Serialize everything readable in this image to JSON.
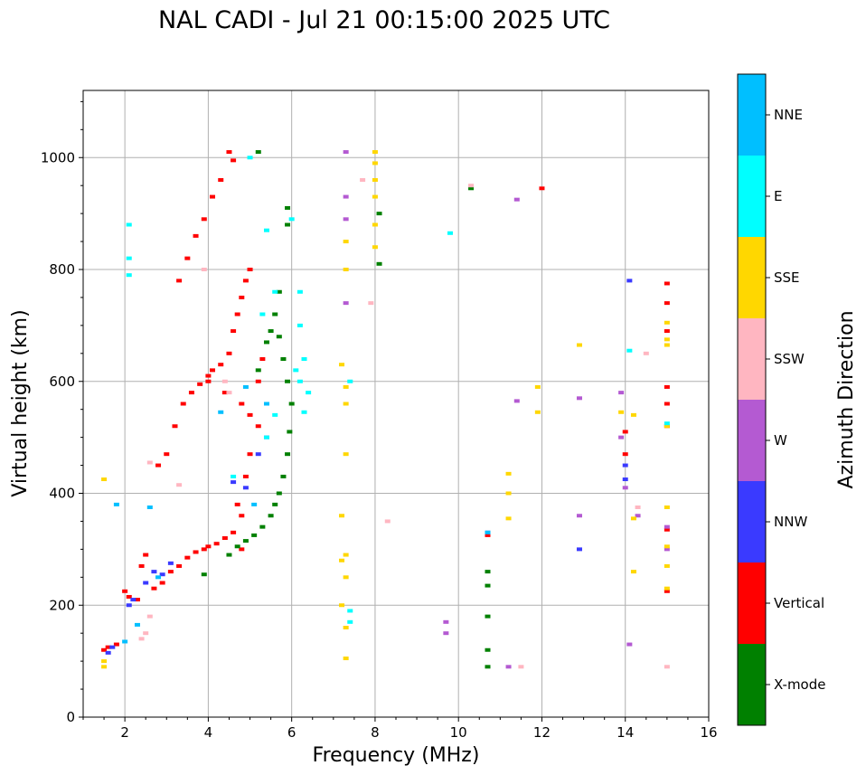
{
  "chart_data": {
    "type": "scatter",
    "title": "NAL CADI - Jul 21 00:15:00 2025 UTC",
    "xlabel": "Frequency (MHz)",
    "ylabel": "Virtual height (km)",
    "xlim": [
      1,
      16
    ],
    "ylim": [
      0,
      1120
    ],
    "xticks": [
      2,
      4,
      6,
      8,
      10,
      12,
      14,
      16
    ],
    "yticks": [
      0,
      200,
      400,
      600,
      800,
      1000
    ],
    "grid": true,
    "colorbar": {
      "label": "Azimuth Direction",
      "categories": [
        {
          "name": "X-mode",
          "color": "#008000"
        },
        {
          "name": "Vertical",
          "color": "#ff0000"
        },
        {
          "name": "NNW",
          "color": "#3a3aff"
        },
        {
          "name": "W",
          "color": "#b45ad2"
        },
        {
          "name": "SSW",
          "color": "#ffb6c1"
        },
        {
          "name": "SSE",
          "color": "#ffd700"
        },
        {
          "name": "E",
          "color": "#00ffff"
        },
        {
          "name": "NNE",
          "color": "#00bfff"
        }
      ]
    },
    "series": [
      {
        "name": "Vertical",
        "points": [
          [
            1.5,
            120
          ],
          [
            1.6,
            125
          ],
          [
            1.8,
            130
          ],
          [
            2.0,
            225
          ],
          [
            2.1,
            215
          ],
          [
            2.3,
            210
          ],
          [
            2.4,
            270
          ],
          [
            2.5,
            290
          ],
          [
            2.7,
            230
          ],
          [
            2.9,
            240
          ],
          [
            3.1,
            260
          ],
          [
            3.3,
            270
          ],
          [
            3.5,
            285
          ],
          [
            3.7,
            295
          ],
          [
            3.9,
            300
          ],
          [
            4.0,
            305
          ],
          [
            4.2,
            310
          ],
          [
            4.4,
            320
          ],
          [
            4.6,
            330
          ],
          [
            4.8,
            300
          ],
          [
            2.8,
            450
          ],
          [
            3.0,
            470
          ],
          [
            3.2,
            520
          ],
          [
            3.4,
            560
          ],
          [
            3.6,
            580
          ],
          [
            3.8,
            595
          ],
          [
            4.0,
            610
          ],
          [
            4.1,
            620
          ],
          [
            4.3,
            630
          ],
          [
            4.5,
            650
          ],
          [
            4.6,
            690
          ],
          [
            4.7,
            720
          ],
          [
            4.8,
            750
          ],
          [
            4.9,
            780
          ],
          [
            5.0,
            800
          ],
          [
            3.3,
            780
          ],
          [
            3.5,
            820
          ],
          [
            3.7,
            860
          ],
          [
            3.9,
            890
          ],
          [
            4.1,
            930
          ],
          [
            4.3,
            960
          ],
          [
            4.5,
            1010
          ],
          [
            4.6,
            995
          ],
          [
            4.8,
            560
          ],
          [
            5.0,
            540
          ],
          [
            5.2,
            520
          ],
          [
            4.7,
            380
          ],
          [
            4.8,
            360
          ],
          [
            4.9,
            430
          ],
          [
            5.0,
            470
          ],
          [
            5.2,
            600
          ],
          [
            5.3,
            640
          ],
          [
            4.4,
            580
          ],
          [
            4.0,
            600
          ],
          [
            10.7,
            325
          ],
          [
            15.0,
            775
          ],
          [
            15.0,
            740
          ],
          [
            15.0,
            690
          ],
          [
            15.0,
            590
          ],
          [
            15.0,
            560
          ],
          [
            15.0,
            520
          ],
          [
            15.0,
            335
          ],
          [
            15.0,
            225
          ],
          [
            12.0,
            945
          ],
          [
            14.0,
            510
          ],
          [
            14.0,
            470
          ]
        ]
      },
      {
        "name": "X-mode",
        "points": [
          [
            4.5,
            290
          ],
          [
            4.7,
            305
          ],
          [
            4.9,
            315
          ],
          [
            5.1,
            325
          ],
          [
            5.3,
            340
          ],
          [
            5.5,
            360
          ],
          [
            5.6,
            380
          ],
          [
            5.7,
            400
          ],
          [
            5.8,
            430
          ],
          [
            5.9,
            470
          ],
          [
            5.95,
            510
          ],
          [
            6.0,
            560
          ],
          [
            5.9,
            600
          ],
          [
            5.8,
            640
          ],
          [
            5.7,
            680
          ],
          [
            5.6,
            720
          ],
          [
            5.7,
            760
          ],
          [
            5.5,
            690
          ],
          [
            5.4,
            670
          ],
          [
            5.2,
            620
          ],
          [
            5.9,
            880
          ],
          [
            5.9,
            910
          ],
          [
            5.2,
            1010
          ],
          [
            10.7,
            260
          ],
          [
            10.7,
            235
          ],
          [
            10.7,
            180
          ],
          [
            10.7,
            120
          ],
          [
            10.7,
            90
          ],
          [
            10.3,
            945
          ],
          [
            8.1,
            900
          ],
          [
            8.1,
            810
          ],
          [
            3.9,
            255
          ]
        ]
      },
      {
        "name": "NNW",
        "points": [
          [
            1.6,
            115
          ],
          [
            1.7,
            125
          ],
          [
            2.1,
            200
          ],
          [
            2.2,
            210
          ],
          [
            2.5,
            240
          ],
          [
            2.7,
            260
          ],
          [
            2.9,
            255
          ],
          [
            3.1,
            275
          ],
          [
            4.6,
            420
          ],
          [
            4.9,
            410
          ],
          [
            5.2,
            470
          ],
          [
            5.4,
            500
          ],
          [
            14.1,
            780
          ],
          [
            12.9,
            300
          ],
          [
            14.0,
            450
          ],
          [
            14.0,
            425
          ],
          [
            10.7,
            330
          ]
        ]
      },
      {
        "name": "W",
        "points": [
          [
            7.3,
            1010
          ],
          [
            7.3,
            930
          ],
          [
            7.3,
            890
          ],
          [
            7.3,
            740
          ],
          [
            12.9,
            570
          ],
          [
            12.9,
            360
          ],
          [
            13.9,
            580
          ],
          [
            13.9,
            500
          ],
          [
            14.1,
            130
          ],
          [
            14.0,
            410
          ],
          [
            9.7,
            170
          ],
          [
            9.7,
            150
          ],
          [
            11.2,
            90
          ],
          [
            11.4,
            925
          ],
          [
            15.0,
            340
          ],
          [
            15.0,
            300
          ],
          [
            14.3,
            360
          ],
          [
            11.4,
            565
          ]
        ]
      },
      {
        "name": "SSW",
        "points": [
          [
            2.5,
            150
          ],
          [
            2.6,
            180
          ],
          [
            2.4,
            140
          ],
          [
            4.4,
            600
          ],
          [
            4.5,
            580
          ],
          [
            3.9,
            800
          ],
          [
            2.6,
            455
          ],
          [
            3.3,
            415
          ],
          [
            7.7,
            960
          ],
          [
            7.9,
            740
          ],
          [
            8.3,
            350
          ],
          [
            14.5,
            650
          ],
          [
            14.3,
            375
          ],
          [
            15.0,
            90
          ],
          [
            11.5,
            90
          ],
          [
            10.3,
            950
          ]
        ]
      },
      {
        "name": "SSE",
        "points": [
          [
            1.5,
            100
          ],
          [
            1.5,
            90
          ],
          [
            1.5,
            425
          ],
          [
            7.2,
            630
          ],
          [
            7.3,
            590
          ],
          [
            7.3,
            560
          ],
          [
            7.3,
            470
          ],
          [
            7.2,
            360
          ],
          [
            7.3,
            290
          ],
          [
            7.2,
            280
          ],
          [
            7.3,
            250
          ],
          [
            7.2,
            200
          ],
          [
            7.3,
            160
          ],
          [
            7.3,
            105
          ],
          [
            8.0,
            990
          ],
          [
            8.0,
            960
          ],
          [
            8.0,
            930
          ],
          [
            8.0,
            880
          ],
          [
            8.0,
            840
          ],
          [
            8.0,
            1010
          ],
          [
            7.3,
            850
          ],
          [
            7.3,
            800
          ],
          [
            11.2,
            435
          ],
          [
            11.2,
            400
          ],
          [
            11.2,
            355
          ],
          [
            11.9,
            590
          ],
          [
            11.9,
            545
          ],
          [
            12.9,
            665
          ],
          [
            13.9,
            545
          ],
          [
            14.2,
            540
          ],
          [
            14.2,
            355
          ],
          [
            14.2,
            260
          ],
          [
            15.0,
            705
          ],
          [
            15.0,
            665
          ],
          [
            15.0,
            675
          ],
          [
            15.0,
            520
          ],
          [
            15.0,
            375
          ],
          [
            15.0,
            270
          ],
          [
            15.0,
            230
          ],
          [
            15.0,
            305
          ]
        ]
      },
      {
        "name": "E",
        "points": [
          [
            2.1,
            880
          ],
          [
            2.1,
            820
          ],
          [
            2.1,
            790
          ],
          [
            5.0,
            1000
          ],
          [
            5.4,
            870
          ],
          [
            5.6,
            760
          ],
          [
            6.2,
            760
          ],
          [
            6.2,
            700
          ],
          [
            6.3,
            640
          ],
          [
            6.2,
            600
          ],
          [
            6.4,
            580
          ],
          [
            6.3,
            545
          ],
          [
            6.1,
            620
          ],
          [
            5.6,
            540
          ],
          [
            5.4,
            500
          ],
          [
            7.4,
            600
          ],
          [
            7.4,
            190
          ],
          [
            7.4,
            170
          ],
          [
            9.8,
            865
          ],
          [
            14.1,
            655
          ],
          [
            15.0,
            525
          ],
          [
            6.0,
            890
          ],
          [
            4.6,
            430
          ],
          [
            5.3,
            720
          ]
        ]
      },
      {
        "name": "NNE",
        "points": [
          [
            1.8,
            380
          ],
          [
            2.6,
            375
          ],
          [
            2.0,
            135
          ],
          [
            2.3,
            165
          ],
          [
            4.3,
            545
          ],
          [
            4.9,
            590
          ],
          [
            5.4,
            560
          ],
          [
            10.7,
            330
          ],
          [
            5.1,
            380
          ],
          [
            2.8,
            250
          ]
        ]
      }
    ]
  }
}
